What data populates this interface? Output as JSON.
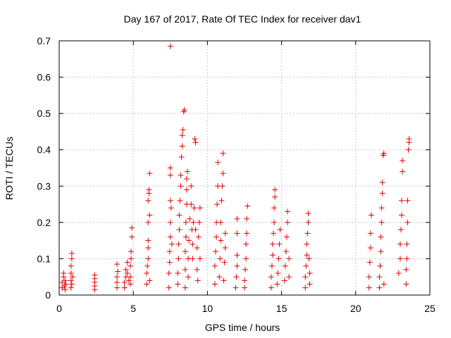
{
  "chart_data": {
    "type": "scatter",
    "title": "Day 167 of 2017, Rate Of TEC Index for receiver dav1",
    "xlabel": "GPS time / hours",
    "ylabel": "ROTI / TECUs",
    "xlim": [
      0,
      25
    ],
    "ylim": [
      0,
      0.7
    ],
    "xticks": [
      0,
      5,
      10,
      15,
      20,
      25
    ],
    "yticks": [
      0,
      0.1,
      0.2,
      0.3,
      0.4,
      0.5,
      0.6,
      0.7
    ],
    "xtick_labels": [
      "0",
      "5",
      "10",
      "15",
      "20",
      "25"
    ],
    "ytick_labels": [
      "0",
      "0.1",
      "0.2",
      "0.3",
      "0.4",
      "0.5",
      "0.6",
      "0.7"
    ],
    "grid": true,
    "marker": "+",
    "color": "#e00000",
    "series": [
      {
        "points": [
          [
            0.2,
            0.02
          ],
          [
            0.2,
            0.035
          ],
          [
            0.3,
            0.05
          ],
          [
            0.3,
            0.06
          ],
          [
            0.35,
            0.025
          ],
          [
            0.4,
            0.015
          ],
          [
            0.4,
            0.04
          ],
          [
            0.45,
            0.03
          ],
          [
            0.8,
            0.02
          ],
          [
            0.8,
            0.04
          ],
          [
            0.8,
            0.06
          ],
          [
            0.8,
            0.08
          ],
          [
            0.85,
            0.1
          ],
          [
            0.85,
            0.115
          ],
          [
            0.85,
            0.03
          ],
          [
            0.9,
            0.05
          ],
          [
            2.4,
            0.015
          ],
          [
            2.4,
            0.025
          ],
          [
            2.4,
            0.035
          ],
          [
            2.4,
            0.045
          ],
          [
            2.4,
            0.055
          ],
          [
            3.9,
            0.02
          ],
          [
            3.9,
            0.035
          ],
          [
            3.9,
            0.05
          ],
          [
            3.95,
            0.065
          ],
          [
            3.9,
            0.085
          ],
          [
            4.4,
            0.02
          ],
          [
            4.4,
            0.035
          ],
          [
            4.5,
            0.05
          ],
          [
            4.5,
            0.07
          ],
          [
            4.6,
            0.09
          ],
          [
            4.6,
            0.06
          ],
          [
            4.7,
            0.04
          ],
          [
            4.8,
            0.05
          ],
          [
            4.8,
            0.08
          ],
          [
            4.85,
            0.1
          ],
          [
            4.85,
            0.12
          ],
          [
            4.9,
            0.16
          ],
          [
            4.9,
            0.185
          ],
          [
            4.8,
            0.03
          ],
          [
            5.9,
            0.03
          ],
          [
            5.9,
            0.06
          ],
          [
            5.95,
            0.08
          ],
          [
            6.0,
            0.1
          ],
          [
            6.0,
            0.13
          ],
          [
            6.0,
            0.15
          ],
          [
            6.0,
            0.2
          ],
          [
            6.0,
            0.26
          ],
          [
            6.05,
            0.29
          ],
          [
            6.05,
            0.28
          ],
          [
            6.1,
            0.335
          ],
          [
            6.1,
            0.22
          ],
          [
            6.1,
            0.04
          ],
          [
            7.4,
            0.02
          ],
          [
            7.4,
            0.06
          ],
          [
            7.45,
            0.09
          ],
          [
            7.45,
            0.12
          ],
          [
            7.5,
            0.16
          ],
          [
            7.5,
            0.2
          ],
          [
            7.5,
            0.26
          ],
          [
            7.5,
            0.33
          ],
          [
            7.5,
            0.35
          ],
          [
            7.5,
            0.685
          ],
          [
            7.55,
            0.24
          ],
          [
            7.6,
            0.14
          ],
          [
            8.0,
            0.03
          ],
          [
            8.0,
            0.06
          ],
          [
            8.05,
            0.1
          ],
          [
            8.05,
            0.14
          ],
          [
            8.1,
            0.18
          ],
          [
            8.1,
            0.22
          ],
          [
            8.15,
            0.26
          ],
          [
            8.2,
            0.3
          ],
          [
            8.2,
            0.33
          ],
          [
            8.25,
            0.38
          ],
          [
            8.3,
            0.41
          ],
          [
            8.3,
            0.44
          ],
          [
            8.35,
            0.455
          ],
          [
            8.4,
            0.505
          ],
          [
            8.45,
            0.51
          ],
          [
            8.5,
            0.02
          ],
          [
            8.5,
            0.07
          ],
          [
            8.5,
            0.12
          ],
          [
            8.55,
            0.16
          ],
          [
            8.55,
            0.2
          ],
          [
            8.6,
            0.25
          ],
          [
            8.6,
            0.29
          ],
          [
            8.6,
            0.32
          ],
          [
            8.65,
            0.34
          ],
          [
            8.7,
            0.05
          ],
          [
            8.7,
            0.1
          ],
          [
            8.75,
            0.15
          ],
          [
            8.8,
            0.21
          ],
          [
            8.9,
            0.25
          ],
          [
            8.9,
            0.3
          ],
          [
            8.95,
            0.18
          ],
          [
            9.0,
            0.1
          ],
          [
            9.0,
            0.14
          ],
          [
            9.05,
            0.2
          ],
          [
            9.1,
            0.24
          ],
          [
            9.15,
            0.43
          ],
          [
            9.2,
            0.42
          ],
          [
            9.2,
            0.18
          ],
          [
            9.3,
            0.13
          ],
          [
            9.3,
            0.07
          ],
          [
            9.35,
            0.04
          ],
          [
            9.4,
            0.16
          ],
          [
            9.45,
            0.2
          ],
          [
            9.5,
            0.24
          ],
          [
            9.5,
            0.1
          ],
          [
            10.5,
            0.03
          ],
          [
            10.5,
            0.08
          ],
          [
            10.55,
            0.12
          ],
          [
            10.6,
            0.16
          ],
          [
            10.6,
            0.2
          ],
          [
            10.65,
            0.25
          ],
          [
            10.7,
            0.3
          ],
          [
            10.7,
            0.365
          ],
          [
            10.8,
            0.05
          ],
          [
            10.85,
            0.1
          ],
          [
            10.9,
            0.15
          ],
          [
            10.9,
            0.2
          ],
          [
            10.95,
            0.26
          ],
          [
            11.0,
            0.3
          ],
          [
            11.05,
            0.335
          ],
          [
            11.05,
            0.39
          ],
          [
            11.1,
            0.04
          ],
          [
            11.15,
            0.09
          ],
          [
            11.2,
            0.13
          ],
          [
            11.2,
            0.17
          ],
          [
            11.9,
            0.02
          ],
          [
            11.95,
            0.05
          ],
          [
            12.0,
            0.08
          ],
          [
            12.0,
            0.11
          ],
          [
            12.0,
            0.17
          ],
          [
            12.0,
            0.21
          ],
          [
            12.5,
            0.02
          ],
          [
            12.5,
            0.04
          ],
          [
            12.55,
            0.07
          ],
          [
            12.6,
            0.1
          ],
          [
            12.6,
            0.14
          ],
          [
            12.65,
            0.17
          ],
          [
            12.65,
            0.21
          ],
          [
            12.7,
            0.245
          ],
          [
            14.3,
            0.02
          ],
          [
            14.3,
            0.05
          ],
          [
            14.35,
            0.08
          ],
          [
            14.4,
            0.11
          ],
          [
            14.4,
            0.14
          ],
          [
            14.45,
            0.17
          ],
          [
            14.5,
            0.2
          ],
          [
            14.5,
            0.24
          ],
          [
            14.55,
            0.27
          ],
          [
            14.55,
            0.29
          ],
          [
            14.7,
            0.03
          ],
          [
            14.75,
            0.06
          ],
          [
            14.8,
            0.1
          ],
          [
            14.85,
            0.14
          ],
          [
            14.9,
            0.18
          ],
          [
            15.2,
            0.04
          ],
          [
            15.25,
            0.08
          ],
          [
            15.3,
            0.12
          ],
          [
            15.35,
            0.16
          ],
          [
            15.4,
            0.2
          ],
          [
            15.4,
            0.23
          ],
          [
            15.5,
            0.1
          ],
          [
            15.5,
            0.05
          ],
          [
            16.6,
            0.02
          ],
          [
            16.6,
            0.05
          ],
          [
            16.65,
            0.08
          ],
          [
            16.7,
            0.11
          ],
          [
            16.7,
            0.14
          ],
          [
            16.75,
            0.17
          ],
          [
            16.8,
            0.2
          ],
          [
            16.8,
            0.225
          ],
          [
            16.85,
            0.1
          ],
          [
            16.9,
            0.06
          ],
          [
            16.9,
            0.03
          ],
          [
            20.9,
            0.02
          ],
          [
            20.9,
            0.05
          ],
          [
            20.95,
            0.09
          ],
          [
            21.0,
            0.13
          ],
          [
            21.0,
            0.17
          ],
          [
            21.05,
            0.22
          ],
          [
            21.6,
            0.02
          ],
          [
            21.6,
            0.05
          ],
          [
            21.65,
            0.08
          ],
          [
            21.7,
            0.12
          ],
          [
            21.7,
            0.16
          ],
          [
            21.75,
            0.2
          ],
          [
            21.75,
            0.24
          ],
          [
            21.8,
            0.28
          ],
          [
            21.8,
            0.31
          ],
          [
            21.85,
            0.385
          ],
          [
            21.9,
            0.39
          ],
          [
            21.9,
            0.03
          ],
          [
            22.9,
            0.06
          ],
          [
            23.0,
            0.1
          ],
          [
            23.0,
            0.14
          ],
          [
            23.05,
            0.18
          ],
          [
            23.1,
            0.22
          ],
          [
            23.1,
            0.26
          ],
          [
            23.15,
            0.34
          ],
          [
            23.15,
            0.37
          ],
          [
            23.4,
            0.03
          ],
          [
            23.4,
            0.07
          ],
          [
            23.45,
            0.1
          ],
          [
            23.45,
            0.14
          ],
          [
            23.5,
            0.2
          ],
          [
            23.5,
            0.26
          ],
          [
            23.55,
            0.4
          ],
          [
            23.6,
            0.42
          ],
          [
            23.6,
            0.43
          ]
        ]
      }
    ]
  }
}
